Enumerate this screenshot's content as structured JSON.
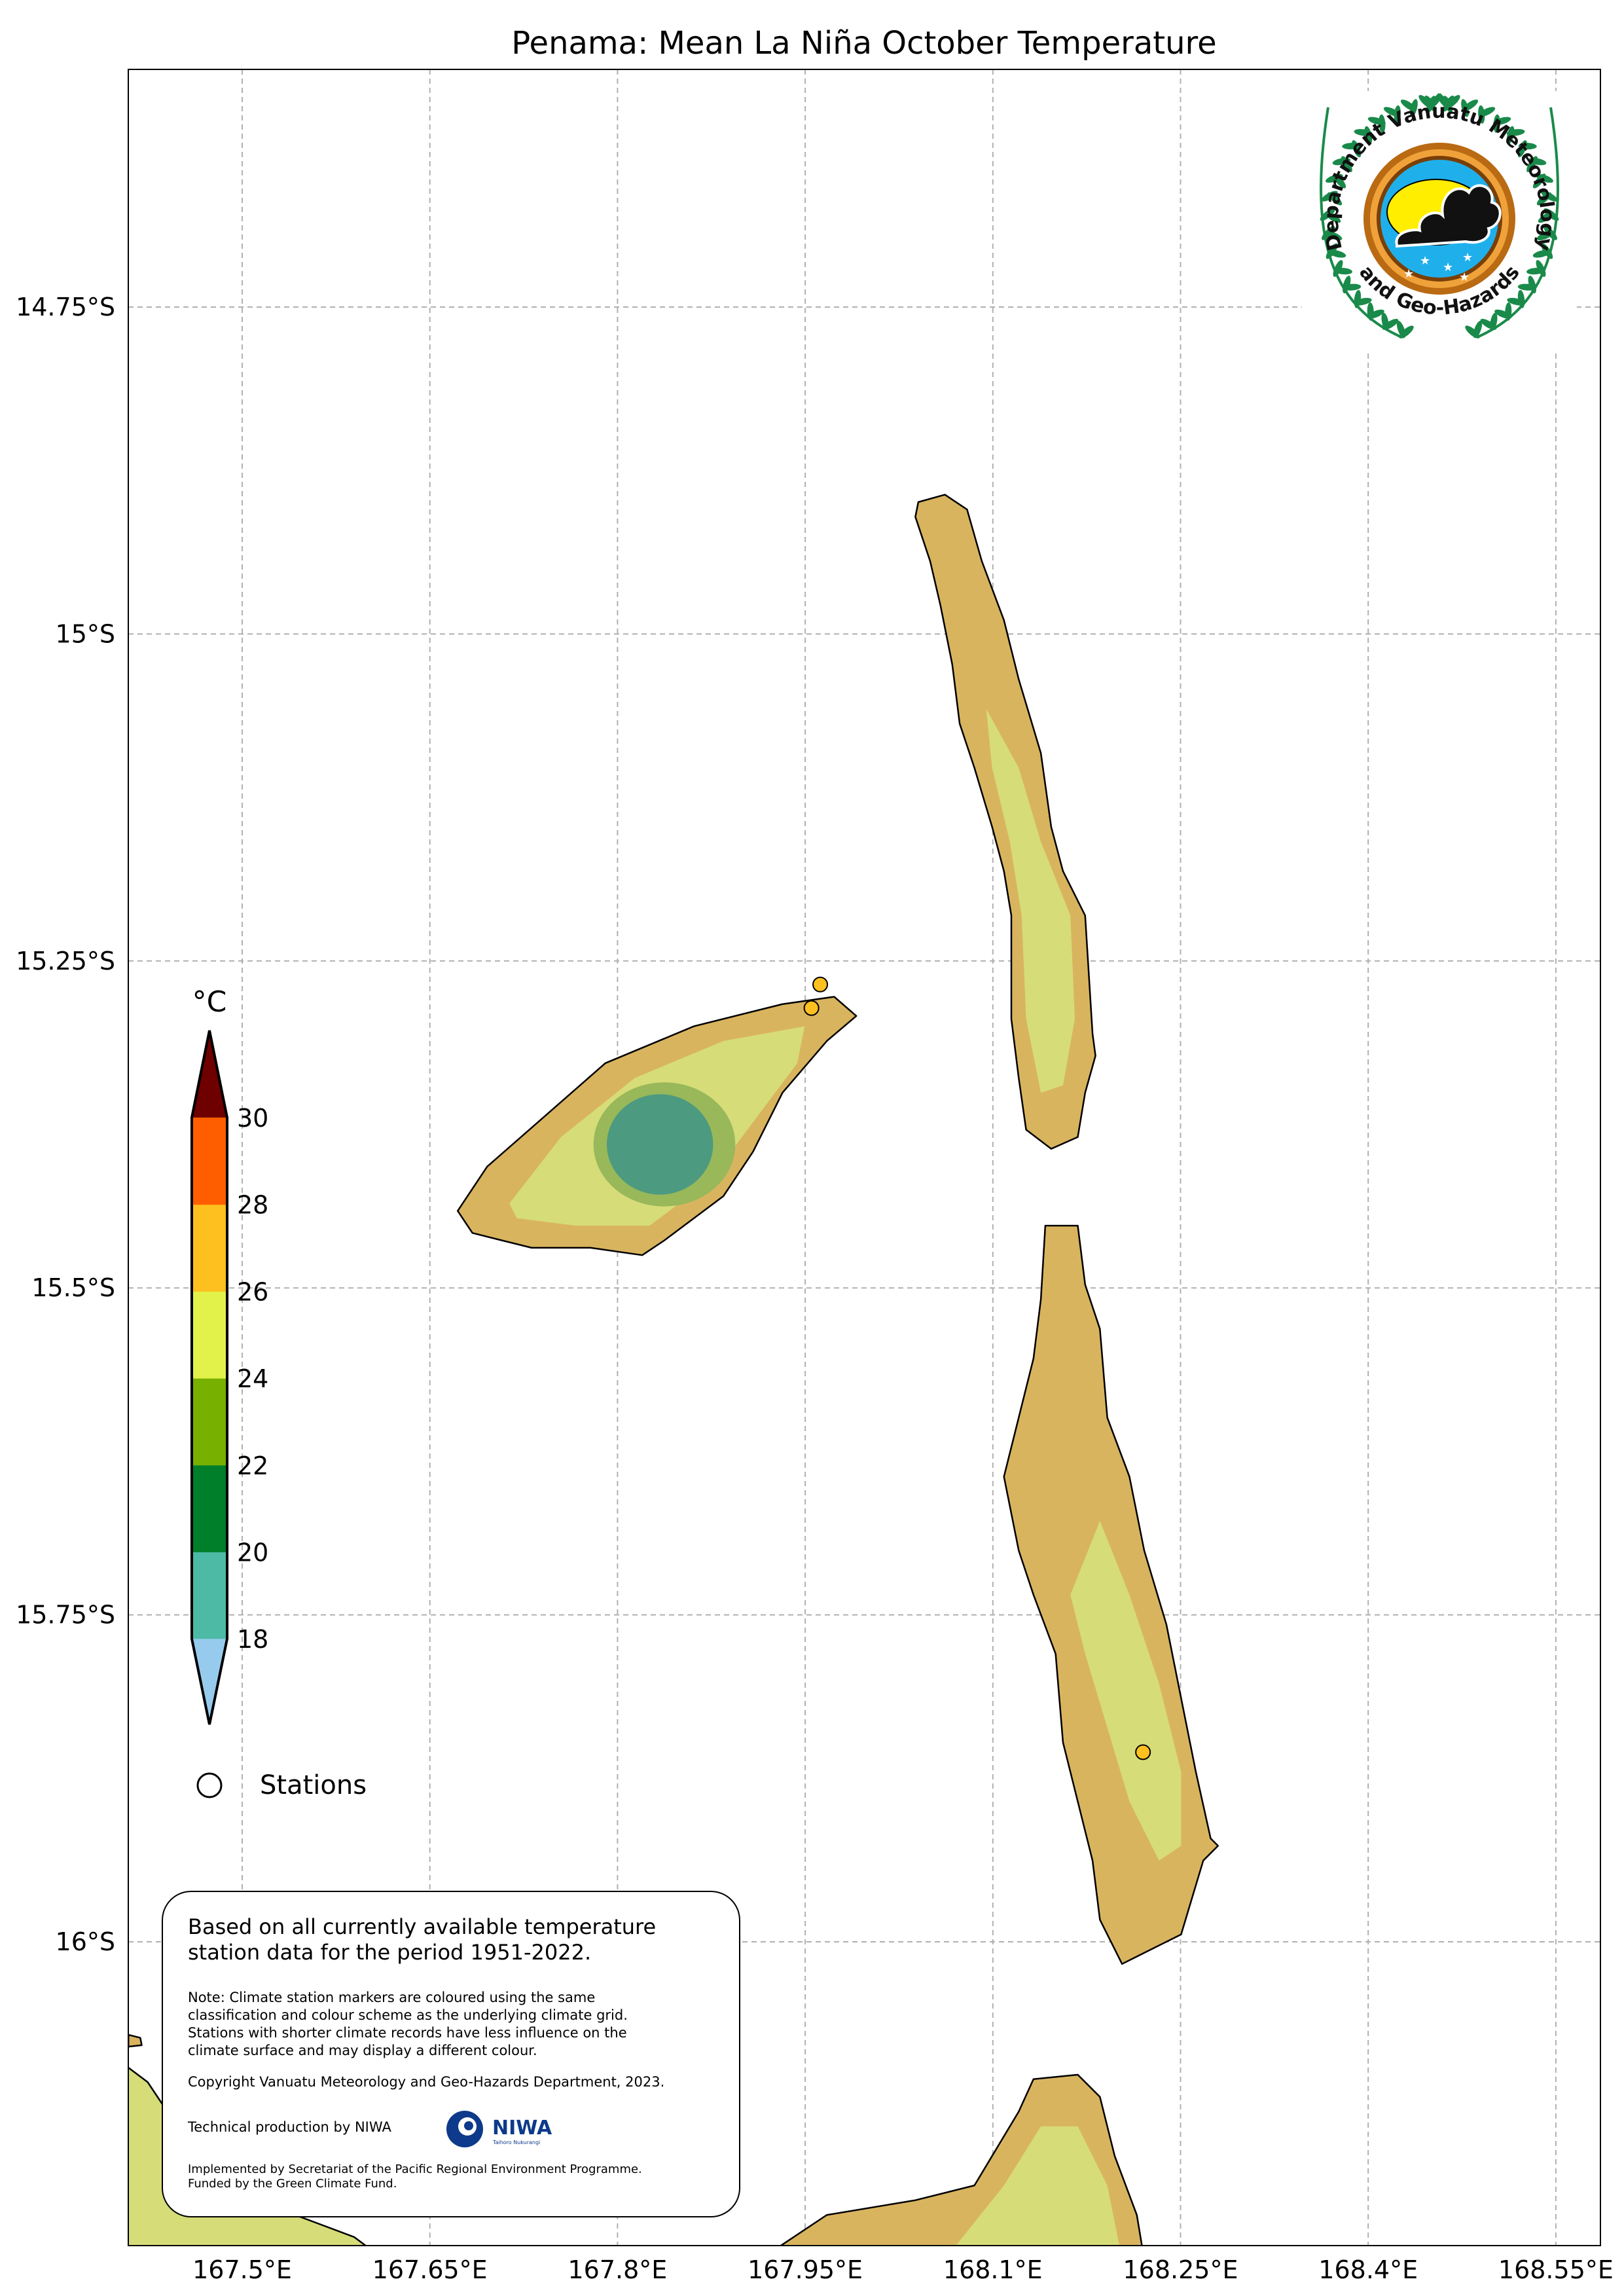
{
  "title": "Penama: Mean La Niña October Temperature",
  "x_ticks": [
    {
      "lon": 167.5,
      "label": "167.5°E"
    },
    {
      "lon": 167.65,
      "label": "167.65°E"
    },
    {
      "lon": 167.8,
      "label": "167.8°E"
    },
    {
      "lon": 167.95,
      "label": "167.95°E"
    },
    {
      "lon": 168.1,
      "label": "168.1°E"
    },
    {
      "lon": 168.25,
      "label": "168.25°E"
    },
    {
      "lon": 168.4,
      "label": "168.4°E"
    },
    {
      "lon": 168.55,
      "label": "168.55°E"
    }
  ],
  "y_ticks": [
    {
      "lat": -14.75,
      "label": "14.75°S"
    },
    {
      "lat": -15.0,
      "label": "15°S"
    },
    {
      "lat": -15.25,
      "label": "15.25°S"
    },
    {
      "lat": -15.5,
      "label": "15.5°S"
    },
    {
      "lat": -15.75,
      "label": "15.75°S"
    },
    {
      "lat": -16.0,
      "label": "16°S"
    }
  ],
  "colorbar": {
    "unit": "°C",
    "levels": [
      "18",
      "20",
      "22",
      "24",
      "26",
      "28",
      "30"
    ],
    "colors": [
      "#4cbaa5",
      "#007f2a",
      "#78b000",
      "#e2f24a",
      "#fdc01e",
      "#ff5e00"
    ],
    "under_color": "#97cbee",
    "over_color": "#6e0000"
  },
  "legend": {
    "stations_label": "Stations"
  },
  "stations": [
    {
      "lon": 167.962,
      "lat": -15.268,
      "color": "#fdc01e"
    },
    {
      "lon": 167.955,
      "lat": -15.286,
      "color": "#fdc01e"
    },
    {
      "lon": 168.22,
      "lat": -15.855,
      "color": "#fdc01e"
    }
  ],
  "info_box": {
    "line1": "Based on all currently available temperature",
    "line2": "station data for the period 1951-2022.",
    "note1": "Note: Climate station markers are coloured using the same",
    "note2": "classification and colour scheme as the underlying climate grid.",
    "note3": "Stations with shorter climate records have less influence on the",
    "note4": "climate surface and may display a different colour.",
    "copyright": "Copyright Vanuatu Meteorology and Geo-Hazards Department, 2023.",
    "technical": "Technical production by NIWA",
    "niwa_logo": "NIWA",
    "niwa_sub": "Taihoro Nukurangi",
    "implemented": "Implemented by Secretariat of the Pacific Regional Environment Programme.",
    "funded": "Funded by the Green Climate Fund."
  },
  "logo": {
    "text_top": "Department Vanuatu Meteorology",
    "text_bottom": "and Geo-Hazards"
  },
  "land_colors": {
    "base": "#d9b45f",
    "mid": "#d6dc78",
    "green": "#98b85a",
    "teal": "#4c9a80",
    "coast": "#000000"
  }
}
